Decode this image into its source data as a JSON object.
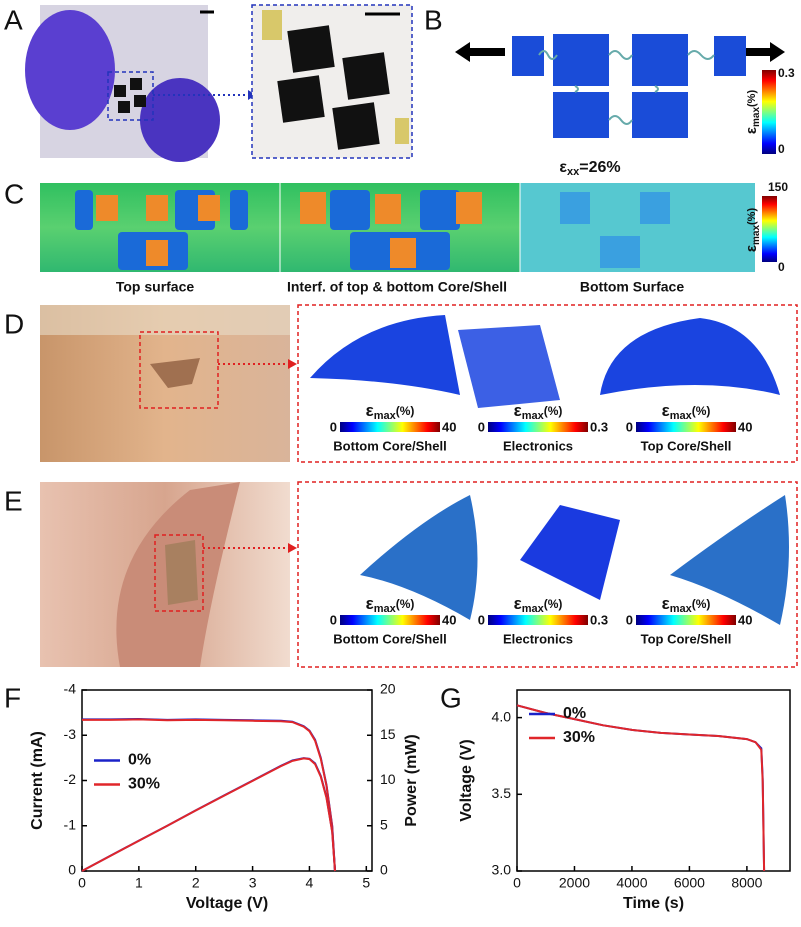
{
  "panel_labels": [
    "A",
    "B",
    "C",
    "D",
    "E",
    "F",
    "G"
  ],
  "strain_label": {
    "symbol": "ε",
    "subscript": "max",
    "unit": "(%)"
  },
  "panel_B": {
    "colorbar": {
      "min": 0,
      "max": 0.3
    },
    "caption": {
      "symbol": "ε",
      "subscript": "xx",
      "value": "=26%"
    }
  },
  "panel_C": {
    "colorbar": {
      "min": 0,
      "max": 150
    },
    "captions": [
      "Top surface",
      "Interf. of top & bottom Core/Shell",
      "Bottom Surface"
    ]
  },
  "panel_D": {
    "colorbars": [
      {
        "min": 0,
        "max": 40,
        "caption": "Bottom Core/Shell"
      },
      {
        "min": 0,
        "max": 0.3,
        "caption": "Electronics"
      },
      {
        "min": 0,
        "max": 40,
        "caption": "Top Core/Shell"
      }
    ]
  },
  "panel_E": {
    "colorbars": [
      {
        "min": 0,
        "max": 40,
        "caption": "Bottom Core/Shell"
      },
      {
        "min": 0,
        "max": 0.3,
        "caption": "Electronics"
      },
      {
        "min": 0,
        "max": 40,
        "caption": "Top Core/Shell"
      }
    ]
  },
  "chart_data": [
    {
      "type": "line",
      "xlabel": "Voltage (V)",
      "ylabel": "Current (mA)",
      "y2label": "Power (mW)",
      "x": [
        0,
        0.5,
        1,
        1.5,
        2,
        2.5,
        3,
        3.5,
        3.7,
        3.9,
        4.0,
        4.1,
        4.2,
        4.3,
        4.4,
        4.45
      ],
      "xlim": [
        0,
        5.1
      ],
      "xticks": [
        0,
        1,
        2,
        3,
        4,
        5
      ],
      "ylim": [
        0,
        -4
      ],
      "yticks": [
        0,
        -1,
        -2,
        -3,
        -4
      ],
      "y2lim": [
        0,
        20
      ],
      "y2ticks": [
        0,
        5,
        10,
        15,
        20
      ],
      "legend_position": "center left",
      "series": [
        {
          "name": "0%",
          "color": "#1a22c8",
          "values": [
            -3.35,
            -3.35,
            -3.36,
            -3.34,
            -3.35,
            -3.34,
            -3.33,
            -3.32,
            -3.3,
            -3.2,
            -3.1,
            -2.9,
            -2.5,
            -1.9,
            -1.0,
            0
          ]
        },
        {
          "name": "30%",
          "color": "#e0262a",
          "values": [
            -3.34,
            -3.34,
            -3.35,
            -3.33,
            -3.34,
            -3.33,
            -3.32,
            -3.31,
            -3.29,
            -3.19,
            -3.09,
            -2.88,
            -2.48,
            -1.88,
            -0.98,
            0
          ]
        },
        {
          "color": "#1a22c8",
          "axis": "y2",
          "values": [
            0,
            1.68,
            3.36,
            5.01,
            6.7,
            8.35,
            9.99,
            11.62,
            12.21,
            12.48,
            12.4,
            11.89,
            10.5,
            8.17,
            4.4,
            0
          ]
        },
        {
          "color": "#e0262a",
          "axis": "y2",
          "values": [
            0,
            1.67,
            3.35,
            5.0,
            6.68,
            8.33,
            9.96,
            11.59,
            12.17,
            12.44,
            12.36,
            11.81,
            10.42,
            8.08,
            4.31,
            0
          ]
        }
      ]
    },
    {
      "type": "line",
      "xlabel": "Time (s)",
      "ylabel": "Voltage (V)",
      "x": [
        0,
        1000,
        2000,
        3000,
        4000,
        5000,
        6000,
        7000,
        8000,
        8300,
        8500,
        8550,
        8600
      ],
      "xlim": [
        0,
        9500
      ],
      "xticks": [
        0,
        2000,
        4000,
        6000,
        8000
      ],
      "ylim": [
        3,
        4.18
      ],
      "yticks": [
        {
          "value": 3,
          "label": "3.0"
        },
        3.5,
        {
          "value": 4,
          "label": "4.0"
        }
      ],
      "legend_position": "upper left",
      "series": [
        {
          "name": "0%",
          "color": "#1a22c8",
          "values": [
            4.08,
            4.03,
            3.99,
            3.95,
            3.92,
            3.9,
            3.89,
            3.88,
            3.86,
            3.84,
            3.8,
            3.6,
            3.0
          ]
        },
        {
          "name": "30%",
          "color": "#e0262a",
          "values": [
            4.08,
            4.03,
            3.99,
            3.95,
            3.92,
            3.9,
            3.89,
            3.88,
            3.86,
            3.84,
            3.79,
            3.58,
            3.0
          ]
        }
      ]
    }
  ]
}
